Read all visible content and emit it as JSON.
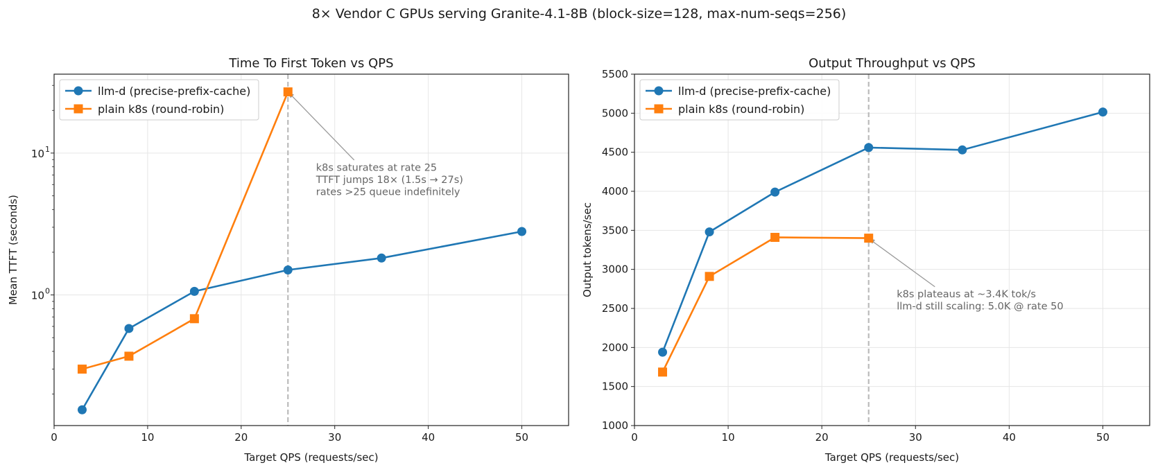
{
  "figure": {
    "suptitle": "8× Vendor C GPUs serving Granite-4.1-8B  (block-size=128, max-num-seqs=256)"
  },
  "colors": {
    "series_0": "#1f77b4",
    "series_1": "#ff7f0e",
    "vline": "#bbbbbb",
    "annotation": "#666666",
    "arrow": "#999999"
  },
  "chart_data": [
    {
      "type": "line",
      "title": "Time To First Token vs QPS",
      "xlabel": "Target QPS (requests/sec)",
      "ylabel": "Mean TTFT (seconds)",
      "xlim": [
        0,
        55
      ],
      "ylim": [
        0.12,
        36
      ],
      "yscale": "log",
      "x_ticks": [
        0,
        10,
        20,
        30,
        40,
        50
      ],
      "y_major_ticks": [
        {
          "value": 1,
          "label_base": "10",
          "label_exp": "0"
        },
        {
          "value": 10,
          "label_base": "10",
          "label_exp": "1"
        }
      ],
      "grid": true,
      "legend": "top-left",
      "series": [
        {
          "name": "llm-d (precise-prefix-cache)",
          "marker": "circle",
          "x": [
            3,
            8,
            15,
            25,
            35,
            50
          ],
          "y": [
            0.155,
            0.58,
            1.06,
            1.5,
            1.82,
            2.8
          ]
        },
        {
          "name": "plain k8s (round-robin)",
          "marker": "square",
          "x": [
            3,
            8,
            15,
            25
          ],
          "y": [
            0.3,
            0.37,
            0.68,
            27
          ]
        }
      ],
      "vline": 25,
      "annotation": {
        "lines": [
          "k8s saturates at rate 25",
          "TTFT jumps 18× (1.5s → 27s)",
          "rates >25 queue indefinitely"
        ],
        "text_at": [
          28,
          7.5
        ],
        "arrow_to": [
          25,
          27
        ]
      }
    },
    {
      "type": "line",
      "title": "Output Throughput vs QPS",
      "xlabel": "Target QPS (requests/sec)",
      "ylabel": "Output tokens/sec",
      "xlim": [
        0,
        55
      ],
      "ylim": [
        1000,
        5500
      ],
      "yscale": "linear",
      "x_ticks": [
        0,
        10,
        20,
        30,
        40,
        50
      ],
      "y_ticks": [
        1000,
        1500,
        2000,
        2500,
        3000,
        3500,
        4000,
        4500,
        5000,
        5500
      ],
      "grid": true,
      "legend": "top-left",
      "series": [
        {
          "name": "llm-d (precise-prefix-cache)",
          "marker": "circle",
          "x": [
            3,
            8,
            15,
            25,
            35,
            50
          ],
          "y": [
            1940,
            3480,
            3990,
            4560,
            4530,
            5015
          ]
        },
        {
          "name": "plain k8s (round-robin)",
          "marker": "square",
          "x": [
            3,
            8,
            15,
            25
          ],
          "y": [
            1685,
            2910,
            3410,
            3400
          ]
        }
      ],
      "vline": 25,
      "annotation": {
        "lines": [
          "k8s plateaus at ~3.4K tok/s",
          "llm-d still scaling: 5.0K @ rate 50"
        ],
        "text_at": [
          28,
          2640
        ],
        "arrow_to": [
          25,
          3400
        ]
      }
    }
  ]
}
